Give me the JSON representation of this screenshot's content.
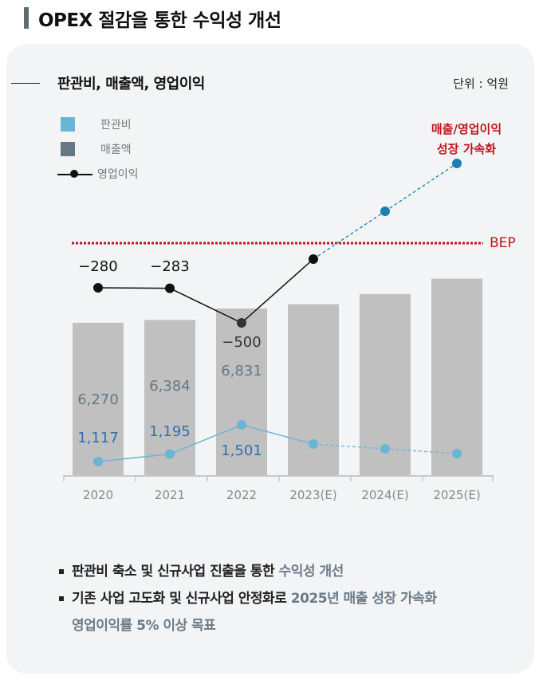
{
  "page_title": "OPEX 절감을 통한 수익성 개선",
  "chart_title": "판관비, 매출액, 영업이익",
  "unit_label": "단위 : 억원",
  "legend": [
    {
      "label": "판관비",
      "color": "#6ab4d6",
      "marker": "square"
    },
    {
      "label": "매출액",
      "color": "#657883",
      "marker": "square"
    },
    {
      "label": "영업이익",
      "color": "#111111",
      "marker": "line-dot"
    }
  ],
  "annotation": {
    "line1": "매출/영업이익",
    "line2": "성장 가속화",
    "color": "#c0141c"
  },
  "bep_label": "BEP",
  "chart_data": {
    "type": "bar+line",
    "categories": [
      "2020",
      "2021",
      "2022",
      "2023(E)",
      "2024(E)",
      "2025(E)"
    ],
    "series": [
      {
        "name": "매출액",
        "type": "bar",
        "values": [
          6270,
          6384,
          6831,
          7000,
          7400,
          8000
        ],
        "labels": [
          "6,270",
          "6,384",
          "6,831",
          "",
          "",
          ""
        ],
        "color": "#c0c0c0",
        "label_color": "#657883"
      },
      {
        "name": "판관비",
        "type": "line",
        "values": [
          1117,
          1195,
          1501,
          1300,
          1250,
          1200
        ],
        "labels": [
          "1,117",
          "1,195",
          "1,501",
          "",
          "",
          ""
        ],
        "color": "#6ab4d6",
        "label_color": "#2f6fb0",
        "estimated_from_index": 3
      },
      {
        "name": "영업이익",
        "type": "line",
        "values": [
          -280,
          -283,
          -500,
          -100,
          200,
          500
        ],
        "labels": [
          "−280",
          "−283",
          "−500",
          "",
          "",
          ""
        ],
        "color": "#111111",
        "forecast_color": "#1a7fb5",
        "estimated_from_index": 3
      }
    ],
    "reference_line": {
      "label": "BEP",
      "value": 0,
      "style": "dotted",
      "color": "#c0141c"
    },
    "grid": false,
    "legend_position": "top-left"
  },
  "bullets": [
    {
      "text": "판관비 축소 및 신규사업 진출을 통한 ",
      "highlight": "수익성 개선"
    },
    {
      "text": "기존 사업 고도화 및 신규사업 안정화로 ",
      "highlight": "2025년 매출  성장 가속화",
      "highlight2": "영업이익률 5% 이상 목표"
    }
  ]
}
